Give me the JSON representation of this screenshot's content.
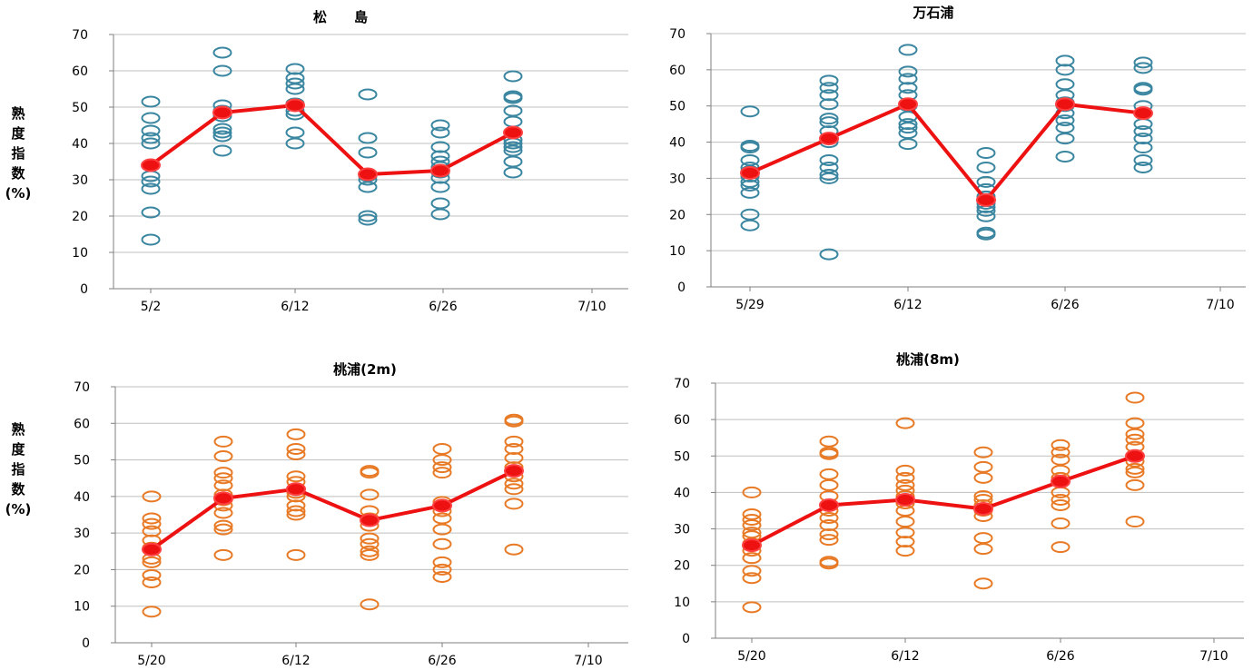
{
  "colors": {
    "blue_marker": "#3a86a0",
    "orange_marker": "#e87a26",
    "mean_line": "#ee1111",
    "mean_marker_edge": "#ff4040"
  },
  "chart_data": [
    {
      "type": "scatter",
      "title": "松　　島",
      "ylabel": "熟度指数(%)",
      "ylim": [
        0,
        70
      ],
      "yticks": [
        0,
        10,
        20,
        30,
        40,
        50,
        60,
        70
      ],
      "x_tick_labels": [
        "5/2",
        "6/12",
        "6/26",
        "7/10"
      ],
      "grid": true,
      "marker_color": "#3a86a0",
      "groups": [
        {
          "samples": [
            13.5,
            21,
            27.5,
            29.5,
            31,
            34,
            40,
            41.5,
            43.5,
            47,
            51.5
          ],
          "mean": 34
        },
        {
          "samples": [
            38,
            42,
            43,
            44,
            47.5,
            49,
            50.5,
            60,
            65
          ],
          "mean": 48.5
        },
        {
          "samples": [
            40,
            43,
            48,
            49,
            51,
            55,
            56.5,
            58,
            60.5
          ],
          "mean": 50.5
        },
        {
          "samples": [
            19,
            20,
            28,
            30,
            31,
            37.5,
            41.5,
            53.5
          ],
          "mean": 31.5
        },
        {
          "samples": [
            20.5,
            23.5,
            28,
            30.5,
            32,
            33.5,
            35,
            36.5,
            39,
            43,
            45
          ],
          "mean": 32.5
        },
        {
          "samples": [
            32,
            35,
            38,
            39,
            40,
            41,
            43,
            46,
            49,
            52.5,
            53,
            58.5
          ],
          "mean": 43
        }
      ],
      "means": [
        34,
        48.5,
        50.5,
        31.5,
        32.5,
        43
      ]
    },
    {
      "type": "scatter",
      "title": "万石浦",
      "ylabel": "",
      "ylim": [
        0,
        70
      ],
      "yticks": [
        0,
        10,
        20,
        30,
        40,
        50,
        60,
        70
      ],
      "x_tick_labels": [
        "5/29",
        "6/12",
        "6/26",
        "7/10"
      ],
      "grid": true,
      "marker_color": "#3a86a0",
      "groups": [
        {
          "samples": [
            17,
            20,
            26,
            28,
            29,
            30.5,
            32,
            33,
            35,
            38.5,
            39,
            48.5
          ],
          "mean": 31.5
        },
        {
          "samples": [
            9,
            30,
            31,
            33,
            35,
            40,
            43,
            45.5,
            46.5,
            50.5,
            53,
            55,
            57
          ],
          "mean": 41
        },
        {
          "samples": [
            39.5,
            42.5,
            44,
            45,
            47,
            50,
            53,
            55,
            57.5,
            59.5,
            65.5
          ],
          "mean": 50.5
        },
        {
          "samples": [
            14.5,
            15,
            19.5,
            21,
            22,
            23,
            25,
            27,
            29,
            33,
            37
          ],
          "mean": 24
        },
        {
          "samples": [
            36,
            41,
            44,
            46,
            48,
            50,
            51,
            53,
            56,
            60,
            62.5
          ],
          "mean": 50.5
        },
        {
          "samples": [
            33,
            35,
            38.5,
            41,
            43,
            45,
            48,
            50,
            54.5,
            55,
            60.5,
            62
          ],
          "mean": 48
        }
      ],
      "means": [
        31.5,
        41,
        50.5,
        24,
        50.5,
        48
      ]
    },
    {
      "type": "scatter",
      "title": "桃浦(2m)",
      "ylabel": "熟度指数(%)",
      "ylim": [
        0,
        70
      ],
      "yticks": [
        0,
        10,
        20,
        30,
        40,
        50,
        60,
        70
      ],
      "x_tick_labels": [
        "5/20",
        "6/12",
        "6/26",
        "7/10"
      ],
      "grid": true,
      "marker_color": "#e87a26",
      "groups": [
        {
          "samples": [
            8.5,
            16.5,
            18.5,
            22,
            23,
            26,
            28,
            30.5,
            32.5,
            34,
            40
          ],
          "mean": 25.5
        },
        {
          "samples": [
            24,
            31,
            32,
            35.5,
            37.5,
            39,
            40.5,
            43,
            45,
            46.5,
            51,
            55
          ],
          "mean": 39.5
        },
        {
          "samples": [
            24,
            35,
            36,
            37.5,
            40,
            41,
            44,
            45.5,
            51.5,
            53,
            57
          ],
          "mean": 42
        },
        {
          "samples": [
            10.5,
            24,
            25,
            27,
            28.5,
            32,
            34,
            36,
            40.5,
            46.5,
            47
          ],
          "mean": 33.5
        },
        {
          "samples": [
            18,
            20,
            22,
            27,
            31,
            34,
            36,
            38.5,
            46.5,
            48,
            50,
            53
          ],
          "mean": 37.5
        },
        {
          "samples": [
            25.5,
            38,
            42,
            43.5,
            45.5,
            48,
            50.5,
            53,
            55,
            60.5,
            61
          ],
          "mean": 47
        }
      ],
      "means": [
        25.5,
        39.5,
        42,
        33.5,
        37.5,
        47
      ]
    },
    {
      "type": "scatter",
      "title": "桃浦(8m)",
      "ylabel": "",
      "ylim": [
        0,
        70
      ],
      "yticks": [
        0,
        10,
        20,
        30,
        40,
        50,
        60,
        70
      ],
      "x_tick_labels": [
        "5/20",
        "6/12",
        "6/26",
        "7/10"
      ],
      "grid": true,
      "marker_color": "#e87a26",
      "groups": [
        {
          "samples": [
            8.5,
            16.5,
            18.5,
            22,
            24,
            26,
            28,
            29,
            31,
            32.5,
            34,
            40
          ],
          "mean": 25.5
        },
        {
          "samples": [
            20.5,
            21,
            27,
            28.5,
            31,
            33,
            35,
            36.5,
            39,
            42,
            45,
            50.5,
            51,
            54
          ],
          "mean": 36.5
        },
        {
          "samples": [
            24,
            26.5,
            29,
            32,
            35,
            37,
            39,
            40.5,
            42,
            44,
            46,
            59
          ],
          "mean": 38
        },
        {
          "samples": [
            15,
            24.5,
            27.5,
            33.5,
            35,
            36.5,
            38,
            39,
            44,
            47,
            51
          ],
          "mean": 35.5
        },
        {
          "samples": [
            25,
            31.5,
            36.5,
            38,
            40,
            44,
            46,
            49,
            51,
            53
          ],
          "mean": 43
        },
        {
          "samples": [
            32,
            42,
            45.5,
            46.5,
            48.5,
            50,
            52.5,
            54.5,
            56,
            59,
            66
          ],
          "mean": 50
        }
      ],
      "means": [
        25.5,
        36.5,
        38,
        35.5,
        43,
        50
      ]
    }
  ]
}
